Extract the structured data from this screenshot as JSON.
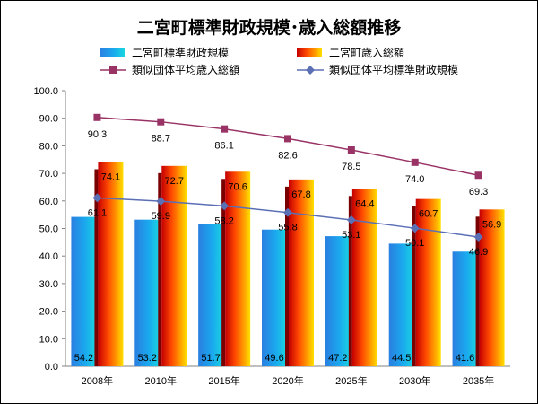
{
  "chart_data": {
    "type": "bar",
    "title": "二宮町標準財政規模･歳入総額推移",
    "categories": [
      "2008年",
      "2010年",
      "2015年",
      "2020年",
      "2025年",
      "2030年",
      "2035年"
    ],
    "ylim": [
      0,
      100
    ],
    "yticks": [
      "0.0",
      "10.0",
      "20.0",
      "30.0",
      "40.0",
      "50.0",
      "60.0",
      "70.0",
      "80.0",
      "90.0",
      "100.0"
    ],
    "grid": false,
    "legend_position": "top",
    "series": [
      {
        "name": "二宮町標準財政規模",
        "kind": "bar",
        "color": "#1e90e8",
        "values": [
          54.2,
          53.2,
          51.7,
          49.6,
          47.2,
          44.5,
          41.6
        ],
        "labels": [
          "54.2",
          "53.2",
          "51.7",
          "49.6",
          "47.2",
          "44.5",
          "41.6"
        ]
      },
      {
        "name": "二宮町歳入総額",
        "kind": "bar",
        "color": "#ff6a00",
        "values": [
          74.1,
          72.7,
          70.6,
          67.8,
          64.4,
          60.7,
          56.9
        ],
        "labels": [
          "74.1",
          "72.7",
          "70.6",
          "67.8",
          "64.4",
          "60.7",
          "56.9"
        ]
      },
      {
        "name": "類似団体平均歳入総額",
        "kind": "line",
        "color": "#993366",
        "marker": "square",
        "values": [
          90.3,
          88.7,
          86.1,
          82.6,
          78.5,
          74.0,
          69.3
        ],
        "labels": [
          "90.3",
          "88.7",
          "86.1",
          "82.6",
          "78.5",
          "74.0",
          "69.3"
        ]
      },
      {
        "name": "類似団体平均標準財政規模",
        "kind": "line",
        "color": "#5b6fb5",
        "marker": "diamond",
        "values": [
          61.1,
          59.9,
          58.2,
          55.8,
          53.1,
          50.1,
          46.9
        ],
        "labels": [
          "61.1",
          "59.9",
          "58.2",
          "55.8",
          "53.1",
          "50.1",
          "46.9"
        ]
      }
    ]
  }
}
